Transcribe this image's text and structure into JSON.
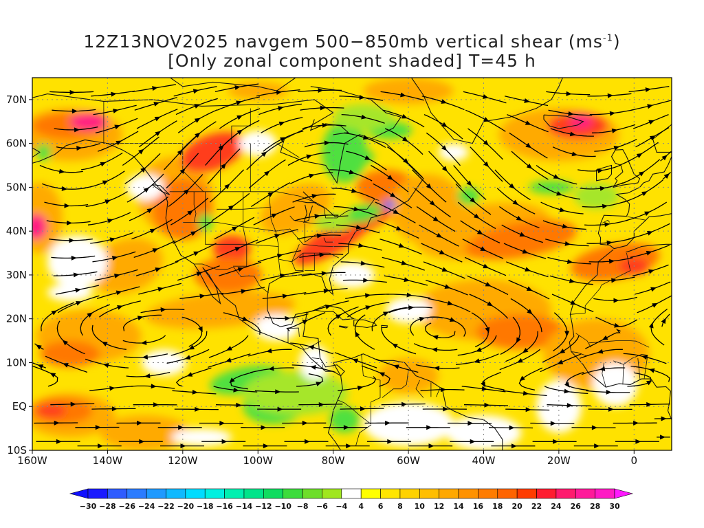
{
  "title": {
    "line1_prefix": "12Z13NOV2025 navgem 500−850mb vertical shear (ms",
    "line1_sup": "-1",
    "line1_suffix": ")",
    "line2": "[Only zonal component shaded] T=45 h"
  },
  "axes": {
    "lat_labels": [
      "70N",
      "60N",
      "50N",
      "40N",
      "30N",
      "20N",
      "10N",
      "EQ",
      "10S"
    ],
    "lat_values": [
      70,
      60,
      50,
      40,
      30,
      20,
      10,
      0,
      -10
    ],
    "lon_labels": [
      "160W",
      "140W",
      "120W",
      "100W",
      "80W",
      "60W",
      "40W",
      "20W",
      "0"
    ],
    "lon_values": [
      -160,
      -140,
      -120,
      -100,
      -80,
      -60,
      -40,
      -20,
      0
    ],
    "lon_range": [
      -160,
      10
    ],
    "lat_range": [
      -10,
      75
    ]
  },
  "colorbar": {
    "labels": [
      "-30",
      "-28",
      "-26",
      "-24",
      "-22",
      "-20",
      "-18",
      "-16",
      "-14",
      "-12",
      "-10",
      "-8",
      "-6",
      "-4",
      "4",
      "6",
      "8",
      "10",
      "12",
      "14",
      "16",
      "18",
      "20",
      "22",
      "24",
      "26",
      "28",
      "30"
    ],
    "colors": [
      "#1a1aff",
      "#2f5cff",
      "#2b7cff",
      "#1f9aff",
      "#10b9ff",
      "#00dcff",
      "#00f0e0",
      "#00f0b0",
      "#00e48a",
      "#10dc60",
      "#3cdc3c",
      "#6ede2a",
      "#a0e61e",
      "#ffffff",
      "#ffff00",
      "#ffe600",
      "#ffd200",
      "#ffbe00",
      "#ffa800",
      "#ff9200",
      "#ff7c00",
      "#ff6400",
      "#ff3c00",
      "#ff1c30",
      "#ff1a6e",
      "#ff1a9a",
      "#ff1ac4"
    ],
    "low_arrow_color": "#1010ff",
    "high_arrow_color": "#ff18ff"
  },
  "colors": {
    "yellow": "#ffe200",
    "orange": "#ffaa00",
    "dark_orange": "#ff7800",
    "red": "#ff3c1e",
    "magenta": "#ff1a82",
    "green": "#50e040",
    "light_green": "#a6e62a",
    "blue": "#1870ff"
  }
}
